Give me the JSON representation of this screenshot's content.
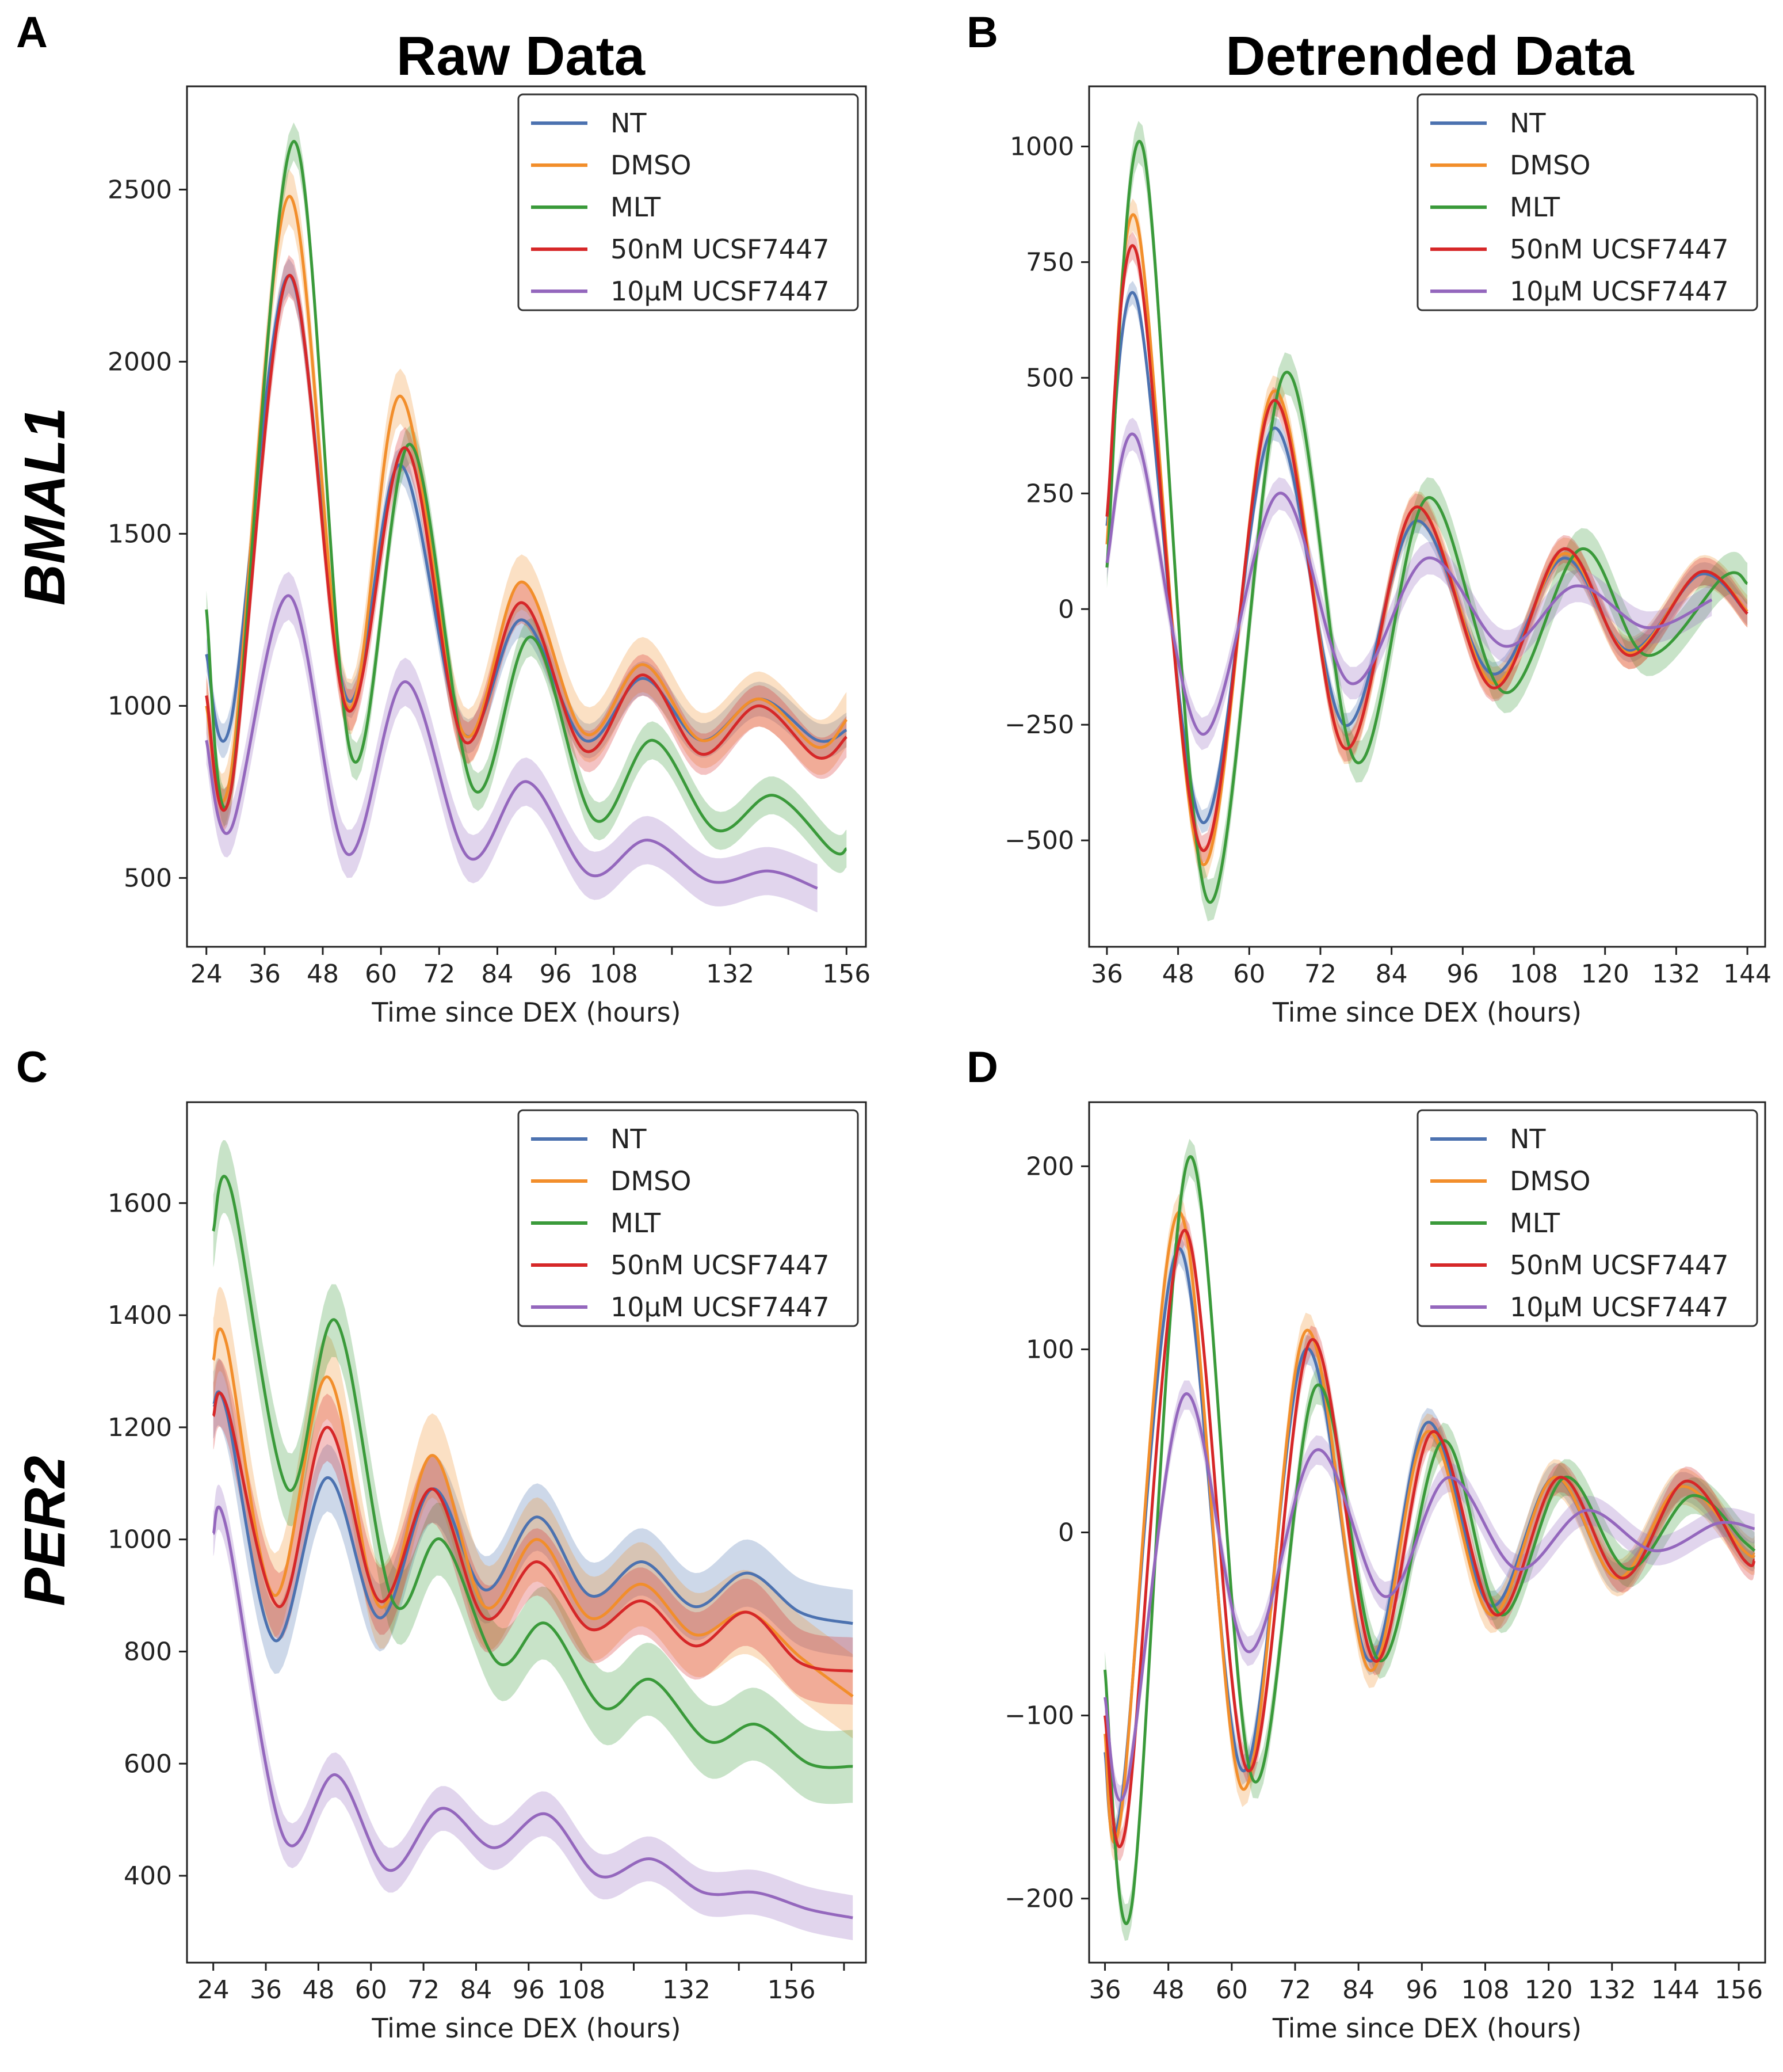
{
  "figure": {
    "column_titles": [
      "Raw Data",
      "Detrended Data"
    ],
    "row_labels": [
      "BMAL1",
      "PER2"
    ]
  },
  "series_colors": {
    "NT": "#4c72b0",
    "DMSO": "#f28e2b",
    "MLT": "#3a9a3a",
    "50nM UCSF7447": "#d62728",
    "10µM UCSF7447": "#9467bd"
  },
  "chart_data": [
    {
      "panel": "A",
      "type": "line",
      "title": "Raw Data",
      "row_label": "BMAL1",
      "xlabel": "Time since DEX (hours)",
      "ylabel": "",
      "xlim": [
        20,
        160
      ],
      "ylim": [
        300,
        2800
      ],
      "xticks": [
        24,
        36,
        48,
        60,
        72,
        84,
        96,
        108,
        132,
        156
      ],
      "xtick_minor": [
        120,
        144
      ],
      "yticks": [
        500,
        1000,
        1500,
        2000,
        2500
      ],
      "legend": [
        "NT",
        "DMSO",
        "MLT",
        "50nM UCSF7447",
        "10µM UCSF7447"
      ],
      "legend_position": "top-right",
      "shaded_band": true,
      "series": [
        {
          "name": "NT",
          "x": [
            24,
            29,
            41,
            53,
            64,
            77,
            89,
            102,
            114,
            126,
            138,
            150,
            156
          ],
          "values": [
            1150,
            950,
            2250,
            1020,
            1700,
            920,
            1250,
            900,
            1080,
            900,
            1020,
            900,
            930
          ],
          "band": 50
        },
        {
          "name": "DMSO",
          "x": [
            24,
            29,
            41,
            53,
            64,
            77,
            89,
            102,
            114,
            126,
            138,
            150,
            156
          ],
          "values": [
            1000,
            800,
            2480,
            1000,
            1900,
            920,
            1360,
            920,
            1120,
            900,
            1020,
            880,
            960
          ],
          "band": 80
        },
        {
          "name": "MLT",
          "x": [
            24,
            29,
            42,
            54,
            66,
            79,
            91,
            104,
            116,
            129,
            141,
            153,
            156
          ],
          "values": [
            1280,
            750,
            2640,
            850,
            1760,
            760,
            1200,
            670,
            900,
            640,
            740,
            580,
            585
          ],
          "band": 55
        },
        {
          "name": "50nM UCSF7447",
          "x": [
            24,
            29,
            41,
            53,
            65,
            77,
            89,
            102,
            114,
            126,
            138,
            150,
            156
          ],
          "values": [
            1030,
            750,
            2250,
            990,
            1750,
            900,
            1300,
            870,
            1090,
            860,
            1000,
            850,
            910
          ],
          "band": 60
        },
        {
          "name": "10µM UCSF7447",
          "x": [
            24,
            29,
            41,
            53,
            65,
            78,
            90,
            103,
            115,
            128,
            140,
            150
          ],
          "values": [
            900,
            640,
            1320,
            570,
            1070,
            560,
            780,
            510,
            610,
            490,
            520,
            470
          ],
          "band": 70
        }
      ]
    },
    {
      "panel": "B",
      "type": "line",
      "title": "Detrended Data",
      "row_label": "BMAL1",
      "xlabel": "Time since DEX (hours)",
      "ylabel": "",
      "xlim": [
        33,
        147
      ],
      "ylim": [
        -730,
        1130
      ],
      "xticks": [
        36,
        48,
        60,
        72,
        84,
        96,
        108,
        120,
        132,
        144
      ],
      "yticks": [
        -500,
        -250,
        0,
        250,
        500,
        750,
        1000
      ],
      "ytick_labels": [
        "−500",
        "−250",
        "0",
        "250",
        "500",
        "750",
        "1000"
      ],
      "legend": [
        "NT",
        "DMSO",
        "MLT",
        "50nM UCSF7447",
        "10µM UCSF7447"
      ],
      "legend_position": "top-right",
      "shaded_band": true,
      "series": [
        {
          "name": "NT",
          "x": [
            36,
            41,
            52,
            64,
            76,
            88,
            101,
            113,
            124,
            136,
            144
          ],
          "values": [
            180,
            670,
            -460,
            390,
            -250,
            190,
            -140,
            110,
            -90,
            75,
            -10
          ],
          "band": 25
        },
        {
          "name": "DMSO",
          "x": [
            36,
            41,
            52,
            64,
            76,
            88,
            101,
            113,
            124,
            136,
            144
          ],
          "values": [
            140,
            840,
            -550,
            470,
            -300,
            220,
            -160,
            120,
            -95,
            80,
            -5
          ],
          "band": 35
        },
        {
          "name": "MLT",
          "x": [
            36,
            42,
            53,
            66,
            78,
            90,
            103,
            116,
            127,
            140,
            144
          ],
          "values": [
            90,
            1000,
            -630,
            510,
            -330,
            240,
            -180,
            130,
            -100,
            70,
            55
          ],
          "band": 45
        },
        {
          "name": "50nM UCSF7447",
          "x": [
            36,
            41,
            52,
            64,
            76,
            88,
            101,
            113,
            124,
            136,
            144
          ],
          "values": [
            200,
            770,
            -520,
            450,
            -300,
            220,
            -170,
            130,
            -100,
            80,
            -10
          ],
          "band": 30
        },
        {
          "name": "10µM UCSF7447",
          "x": [
            36,
            41,
            52,
            65,
            77,
            90,
            103,
            115,
            127,
            138
          ],
          "values": [
            100,
            370,
            -270,
            250,
            -160,
            110,
            -80,
            50,
            -40,
            20
          ],
          "band": 35
        }
      ]
    },
    {
      "panel": "C",
      "type": "line",
      "title": "",
      "row_label": "PER2",
      "xlabel": "Time since DEX (hours)",
      "ylabel": "",
      "xlim": [
        18,
        173
      ],
      "ylim": [
        245,
        1780
      ],
      "xticks": [
        24,
        36,
        48,
        60,
        72,
        84,
        96,
        108,
        132,
        156
      ],
      "xtick_minor": [
        120,
        144,
        168
      ],
      "yticks": [
        400,
        600,
        800,
        1000,
        1200,
        1400,
        1600
      ],
      "legend": [
        "NT",
        "DMSO",
        "MLT",
        "50nM UCSF7447",
        "10µM UCSF7447"
      ],
      "legend_position": "top-right",
      "shaded_band": true,
      "series": [
        {
          "name": "NT",
          "x": [
            24,
            27,
            38,
            50,
            62,
            74,
            86,
            98,
            110,
            122,
            134,
            146,
            158,
            170
          ],
          "values": [
            1240,
            1230,
            820,
            1110,
            860,
            1090,
            910,
            1040,
            900,
            960,
            880,
            940,
            870,
            850
          ],
          "band": 60
        },
        {
          "name": "DMSO",
          "x": [
            24,
            27,
            38,
            50,
            62,
            74,
            86,
            98,
            110,
            122,
            134,
            146,
            158,
            170
          ],
          "values": [
            1320,
            1350,
            900,
            1290,
            880,
            1150,
            880,
            1000,
            860,
            920,
            830,
            870,
            790,
            720
          ],
          "band": 75
        },
        {
          "name": "MLT",
          "x": [
            24,
            28,
            41,
            52,
            65,
            76,
            89,
            100,
            113,
            124,
            137,
            148,
            160,
            170
          ],
          "values": [
            1550,
            1625,
            1090,
            1390,
            890,
            1000,
            780,
            850,
            700,
            750,
            640,
            670,
            600,
            595
          ],
          "band": 65
        },
        {
          "name": "50nM UCSF7447",
          "x": [
            24,
            27,
            39,
            50,
            62,
            74,
            86,
            98,
            110,
            122,
            134,
            146,
            158,
            170
          ],
          "values": [
            1220,
            1240,
            880,
            1200,
            890,
            1090,
            860,
            960,
            840,
            890,
            810,
            870,
            780,
            765
          ],
          "band": 60
        },
        {
          "name": "10µM UCSF7447",
          "x": [
            24,
            27,
            40,
            52,
            64,
            76,
            88,
            100,
            112,
            124,
            136,
            148,
            160,
            170
          ],
          "values": [
            1010,
            1020,
            470,
            580,
            410,
            520,
            450,
            510,
            400,
            430,
            370,
            370,
            340,
            325
          ],
          "band": 40
        }
      ]
    },
    {
      "panel": "D",
      "type": "line",
      "title": "",
      "row_label": "PER2",
      "xlabel": "Time since DEX (hours)",
      "ylabel": "",
      "xlim": [
        33,
        161
      ],
      "ylim": [
        -235,
        235
      ],
      "xticks": [
        36,
        48,
        60,
        72,
        84,
        96,
        108,
        120,
        132,
        144,
        156
      ],
      "yticks": [
        -200,
        -100,
        0,
        100,
        200
      ],
      "ytick_labels": [
        "−200",
        "−100",
        "0",
        "100",
        "200"
      ],
      "legend": [
        "NT",
        "DMSO",
        "MLT",
        "50nM UCSF7447",
        "10µM UCSF7447"
      ],
      "legend_position": "top-right",
      "shaded_band": true,
      "series": [
        {
          "name": "NT",
          "x": [
            36,
            39,
            50,
            62,
            74,
            86,
            97,
            109,
            121,
            133,
            145,
            157,
            159
          ],
          "values": [
            -120,
            -150,
            155,
            -130,
            100,
            -70,
            60,
            -40,
            30,
            -25,
            25,
            -10,
            -12
          ],
          "band": 8
        },
        {
          "name": "DMSO",
          "x": [
            36,
            39,
            50,
            62,
            74,
            86,
            97,
            109,
            121,
            133,
            145,
            157,
            159
          ],
          "values": [
            -110,
            -155,
            175,
            -140,
            110,
            -75,
            55,
            -45,
            30,
            -25,
            25,
            -10,
            -12
          ],
          "band": 10
        },
        {
          "name": "MLT",
          "x": [
            36,
            41,
            52,
            64,
            76,
            88,
            100,
            111,
            123,
            135,
            147,
            157,
            159
          ],
          "values": [
            -75,
            -205,
            205,
            -135,
            80,
            -70,
            50,
            -45,
            30,
            -20,
            20,
            -5,
            -10
          ],
          "band": 10
        },
        {
          "name": "50nM UCSF7447",
          "x": [
            36,
            40,
            51,
            63,
            75,
            87,
            98,
            110,
            122,
            134,
            146,
            157,
            159
          ],
          "values": [
            -100,
            -160,
            165,
            -130,
            105,
            -70,
            55,
            -45,
            30,
            -25,
            28,
            -15,
            -15
          ],
          "band": 8
        },
        {
          "name": "10µM UCSF7447",
          "x": [
            36,
            40,
            51,
            63,
            76,
            89,
            101,
            114,
            127,
            140,
            152,
            159
          ],
          "values": [
            -90,
            -140,
            75,
            -65,
            45,
            -35,
            30,
            -20,
            12,
            -10,
            5,
            2
          ],
          "band": 8
        }
      ]
    }
  ]
}
